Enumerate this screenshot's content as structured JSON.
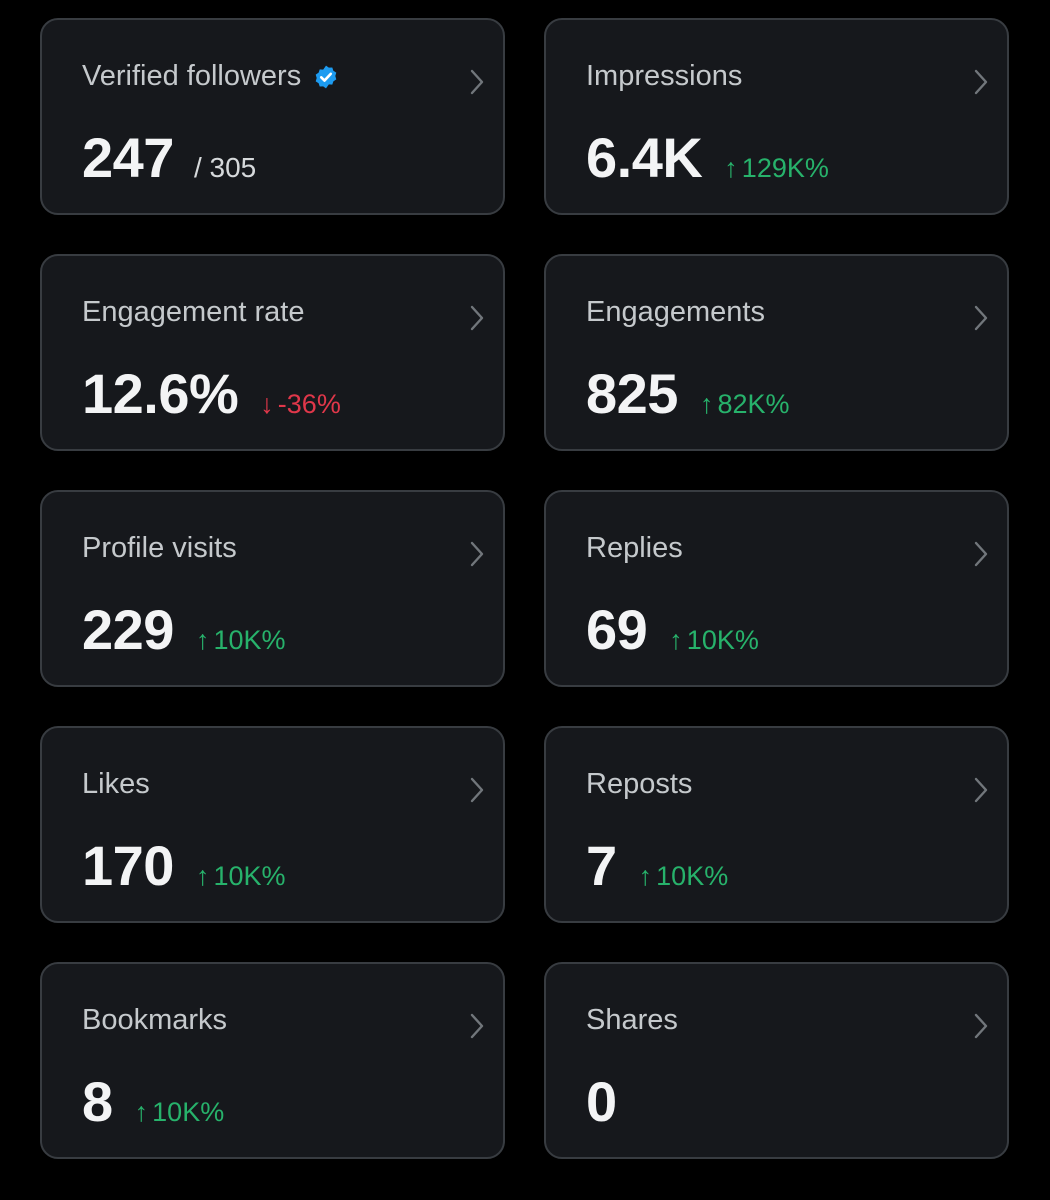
{
  "colors": {
    "background": "#000000",
    "card_background": "#16181c",
    "card_border": "#383c41",
    "positive": "#27b26b",
    "negative": "#e0374a",
    "verified_badge": "#1d9bf0"
  },
  "cards": [
    {
      "title": "Verified followers",
      "value": "247",
      "total": "/ 305",
      "delta_arrow": "",
      "delta": "",
      "delta_dir": "",
      "verified": true
    },
    {
      "title": "Impressions",
      "value": "6.4K",
      "total": "",
      "delta_arrow": "↑",
      "delta": "129K%",
      "delta_dir": "up",
      "verified": false
    },
    {
      "title": "Engagement rate",
      "value": "12.6%",
      "total": "",
      "delta_arrow": "↓",
      "delta": "-36%",
      "delta_dir": "down",
      "verified": false
    },
    {
      "title": "Engagements",
      "value": "825",
      "total": "",
      "delta_arrow": "↑",
      "delta": "82K%",
      "delta_dir": "up",
      "verified": false
    },
    {
      "title": "Profile visits",
      "value": "229",
      "total": "",
      "delta_arrow": "↑",
      "delta": "10K%",
      "delta_dir": "up",
      "verified": false
    },
    {
      "title": "Replies",
      "value": "69",
      "total": "",
      "delta_arrow": "↑",
      "delta": "10K%",
      "delta_dir": "up",
      "verified": false
    },
    {
      "title": "Likes",
      "value": "170",
      "total": "",
      "delta_arrow": "↑",
      "delta": "10K%",
      "delta_dir": "up",
      "verified": false
    },
    {
      "title": "Reposts",
      "value": "7",
      "total": "",
      "delta_arrow": "↑",
      "delta": "10K%",
      "delta_dir": "up",
      "verified": false
    },
    {
      "title": "Bookmarks",
      "value": "8",
      "total": "",
      "delta_arrow": "↑",
      "delta": "10K%",
      "delta_dir": "up",
      "verified": false
    },
    {
      "title": "Shares",
      "value": "0",
      "total": "",
      "delta_arrow": "",
      "delta": "",
      "delta_dir": "",
      "verified": false
    }
  ]
}
